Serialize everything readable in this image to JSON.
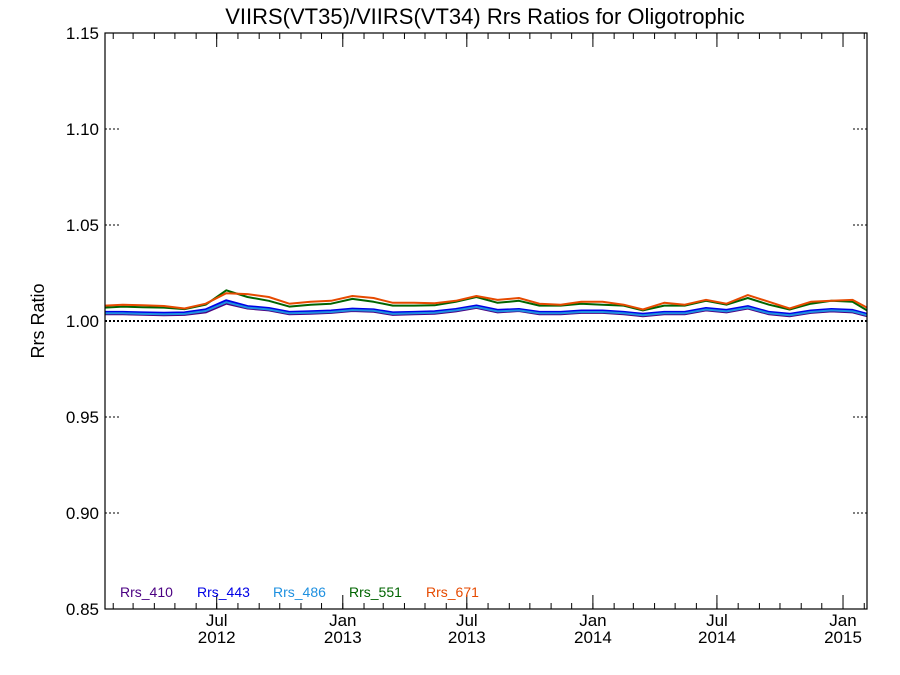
{
  "chart_data": {
    "type": "line",
    "title": "VIIRS(VT35)/VIIRS(VT34)  Rrs Ratios for Oligotrophic",
    "xlabel": "",
    "ylabel": "Rrs Ratio",
    "ylim": [
      0.85,
      1.15
    ],
    "yticks": [
      "1.15",
      "1.10",
      "1.05",
      "1.00",
      "0.95",
      "0.90",
      "0.85"
    ],
    "xlim": [
      "2012-01-20",
      "2015-02-05"
    ],
    "xticks": [
      {
        "date": "2012-07-01",
        "line1": "Jul",
        "line2": "2012"
      },
      {
        "date": "2013-01-01",
        "line1": "Jan",
        "line2": "2013"
      },
      {
        "date": "2013-07-01",
        "line1": "Jul",
        "line2": "2013"
      },
      {
        "date": "2014-01-01",
        "line1": "Jan",
        "line2": "2014"
      },
      {
        "date": "2014-07-01",
        "line1": "Jul",
        "line2": "2014"
      },
      {
        "date": "2015-01-01",
        "line1": "Jan",
        "line2": "2015"
      }
    ],
    "reference_line": 1.0,
    "legend_position": "bottom-left",
    "dates": [
      "2012-01-20",
      "2012-02-15",
      "2012-03-15",
      "2012-04-15",
      "2012-05-15",
      "2012-06-15",
      "2012-07-15",
      "2012-08-15",
      "2012-09-15",
      "2012-10-15",
      "2012-11-15",
      "2012-12-15",
      "2013-01-15",
      "2013-02-15",
      "2013-03-15",
      "2013-04-15",
      "2013-05-15",
      "2013-06-15",
      "2013-07-15",
      "2013-08-15",
      "2013-09-15",
      "2013-10-15",
      "2013-11-15",
      "2013-12-15",
      "2014-01-15",
      "2014-02-15",
      "2014-03-15",
      "2014-04-15",
      "2014-05-15",
      "2014-06-15",
      "2014-07-15",
      "2014-08-15",
      "2014-09-15",
      "2014-10-15",
      "2014-11-15",
      "2014-12-15",
      "2015-01-15",
      "2015-02-05"
    ],
    "series": [
      {
        "name": "Rrs_410",
        "color": "#4b0082",
        "width": 2,
        "values": [
          1.0035,
          1.0035,
          1.0033,
          1.003,
          1.0032,
          1.0045,
          1.009,
          1.0065,
          1.0055,
          1.0035,
          1.0038,
          1.0042,
          1.0052,
          1.0048,
          1.0032,
          1.0035,
          1.0038,
          1.005,
          1.0068,
          1.0045,
          1.0052,
          1.0035,
          1.0035,
          1.0042,
          1.0042,
          1.0035,
          1.0025,
          1.0035,
          1.0035,
          1.0055,
          1.0045,
          1.0065,
          1.0035,
          1.0025,
          1.0042,
          1.005,
          1.0045,
          1.0025
        ]
      },
      {
        "name": "Rrs_443",
        "color": "#0000e6",
        "width": 3,
        "values": [
          1.0045,
          1.0045,
          1.0042,
          1.004,
          1.0042,
          1.0058,
          1.0105,
          1.0075,
          1.0065,
          1.0045,
          1.0048,
          1.0052,
          1.0062,
          1.0058,
          1.0042,
          1.0045,
          1.0048,
          1.006,
          1.0078,
          1.0055,
          1.006,
          1.0045,
          1.0045,
          1.0052,
          1.0052,
          1.0045,
          1.0035,
          1.0045,
          1.0045,
          1.0065,
          1.0055,
          1.0075,
          1.0045,
          1.0035,
          1.0052,
          1.006,
          1.0055,
          1.0035
        ]
      },
      {
        "name": "Rrs_486",
        "color": "#1e90e0",
        "width": 2,
        "values": [
          1.004,
          1.004,
          1.0037,
          1.0035,
          1.0037,
          1.0052,
          1.0098,
          1.007,
          1.006,
          1.004,
          1.0043,
          1.0047,
          1.0057,
          1.0053,
          1.0037,
          1.004,
          1.0043,
          1.0055,
          1.0073,
          1.005,
          1.0055,
          1.004,
          1.004,
          1.0047,
          1.0047,
          1.004,
          1.003,
          1.004,
          1.004,
          1.006,
          1.005,
          1.007,
          1.004,
          1.003,
          1.0047,
          1.0055,
          1.005,
          1.003
        ]
      },
      {
        "name": "Rrs_551",
        "color": "#006400",
        "width": 2,
        "values": [
          1.007,
          1.0075,
          1.0072,
          1.007,
          1.0062,
          1.0085,
          1.016,
          1.0125,
          1.0105,
          1.0075,
          1.0085,
          1.009,
          1.0115,
          1.01,
          1.008,
          1.008,
          1.0082,
          1.01,
          1.0125,
          1.0095,
          1.0105,
          1.008,
          1.008,
          1.009,
          1.0085,
          1.008,
          1.0055,
          1.008,
          1.008,
          1.0105,
          1.0085,
          1.012,
          1.0085,
          1.006,
          1.009,
          1.0105,
          1.01,
          1.0055
        ]
      },
      {
        "name": "Rrs_671",
        "color": "#e64a00",
        "width": 2,
        "values": [
          1.008,
          1.0085,
          1.0082,
          1.0078,
          1.0065,
          1.009,
          1.0145,
          1.014,
          1.0125,
          1.009,
          1.01,
          1.0105,
          1.013,
          1.012,
          1.0095,
          1.0095,
          1.0092,
          1.0105,
          1.013,
          1.011,
          1.012,
          1.009,
          1.0085,
          1.01,
          1.01,
          1.0085,
          1.006,
          1.0095,
          1.0085,
          1.011,
          1.009,
          1.0135,
          1.01,
          1.0065,
          1.01,
          1.0105,
          1.011,
          1.007
        ]
      }
    ]
  }
}
